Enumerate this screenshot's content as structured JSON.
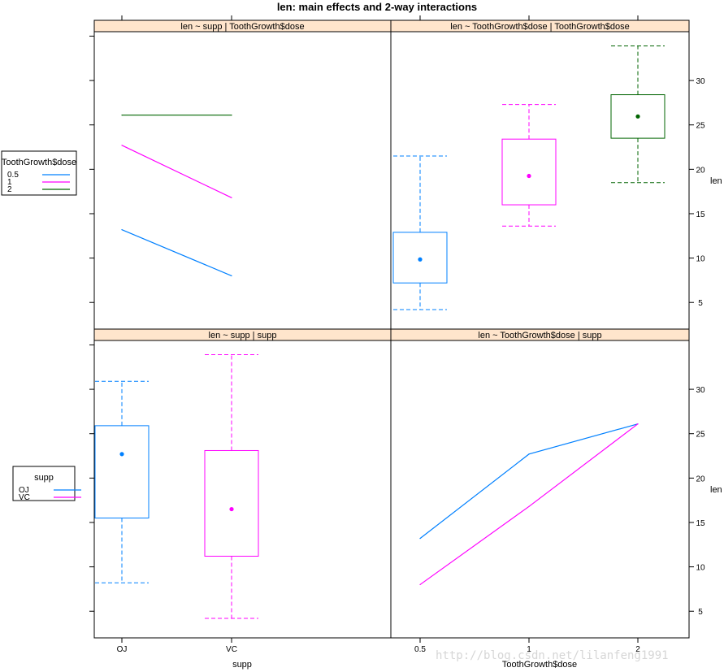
{
  "title": "len: main effects and 2-way interactions",
  "watermark": "http://blog.csdn.net/lilanfeng1991",
  "colors": {
    "series_blue": "#0080ff",
    "series_magenta": "#ff00ff",
    "series_green": "#006400",
    "strip_bg": "#ffe5cc"
  },
  "chart_data": [
    {
      "type": "line",
      "panel": "top-left",
      "title": "len ~ supp | ToothGrowth$dose",
      "categories": [
        "OJ",
        "VC"
      ],
      "series": [
        {
          "name": "0.5",
          "values": [
            13.2,
            8.0
          ]
        },
        {
          "name": "1",
          "values": [
            22.7,
            16.8
          ]
        },
        {
          "name": "2",
          "values": [
            26.1,
            26.1
          ]
        }
      ],
      "ylim": [
        2.0,
        35.5
      ]
    },
    {
      "type": "box",
      "panel": "top-right",
      "title": "len ~ ToothGrowth$dose | ToothGrowth$dose",
      "categories": [
        "0.5",
        "1",
        "2"
      ],
      "boxes": [
        {
          "category": "0.5",
          "min": 4.2,
          "q1": 7.2,
          "median": 9.85,
          "q3": 12.9,
          "max": 21.5
        },
        {
          "category": "1",
          "min": 13.6,
          "q1": 16.0,
          "median": 19.25,
          "q3": 23.4,
          "max": 27.3
        },
        {
          "category": "2",
          "min": 18.5,
          "q1": 23.5,
          "median": 25.95,
          "q3": 28.4,
          "max": 33.9
        }
      ],
      "y_ticks": [
        5,
        10,
        15,
        20,
        25,
        30
      ],
      "ylabel": "len",
      "ylim": [
        2.0,
        35.5
      ]
    },
    {
      "type": "box",
      "panel": "bottom-left",
      "title": "len ~ supp | supp",
      "categories": [
        "OJ",
        "VC"
      ],
      "boxes": [
        {
          "category": "OJ",
          "min": 8.2,
          "q1": 15.5,
          "median": 22.7,
          "q3": 25.9,
          "max": 30.9
        },
        {
          "category": "VC",
          "min": 4.2,
          "q1": 11.2,
          "median": 16.5,
          "q3": 23.1,
          "max": 33.9
        }
      ],
      "xlabel": "supp",
      "ylim": [
        2.0,
        35.5
      ]
    },
    {
      "type": "line",
      "panel": "bottom-right",
      "title": "len ~ ToothGrowth$dose | supp",
      "categories": [
        "0.5",
        "1",
        "2"
      ],
      "series": [
        {
          "name": "OJ",
          "values": [
            13.2,
            22.7,
            26.1
          ]
        },
        {
          "name": "VC",
          "values": [
            8.0,
            16.8,
            26.1
          ]
        }
      ],
      "y_ticks": [
        5,
        10,
        15,
        20,
        25,
        30
      ],
      "xlabel": "ToothGrowth$dose",
      "ylabel": "len",
      "ylim": [
        2.0,
        35.5
      ]
    }
  ],
  "legends": [
    {
      "title": "ToothGrowth$dose",
      "entries": [
        {
          "label": "0.5",
          "color": "#0080ff"
        },
        {
          "label": "1",
          "color": "#ff00ff"
        },
        {
          "label": "2",
          "color": "#006400"
        }
      ]
    },
    {
      "title": "supp",
      "entries": [
        {
          "label": "OJ",
          "color": "#0080ff"
        },
        {
          "label": "VC",
          "color": "#ff00ff"
        }
      ]
    }
  ]
}
